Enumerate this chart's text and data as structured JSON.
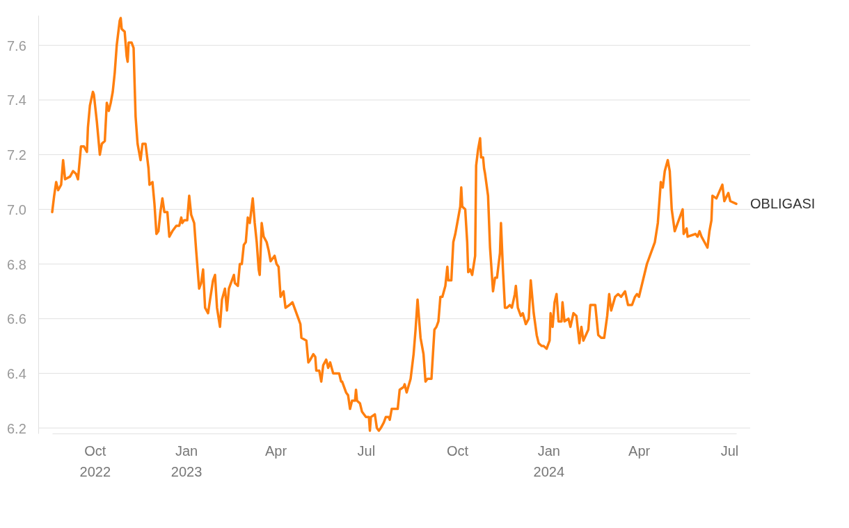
{
  "chart_data": {
    "type": "line",
    "xlim": [
      "2022-08-19",
      "2024-07-08"
    ],
    "ylim": [
      6.18,
      7.71
    ],
    "xticks": [
      {
        "value": "2022-10-01",
        "label": "Oct 2022"
      },
      {
        "value": "2023-01-01",
        "label": "Jan 2023"
      },
      {
        "value": "2023-04-01",
        "label": "Apr"
      },
      {
        "value": "2023-07-01",
        "label": "Jul"
      },
      {
        "value": "2023-10-01",
        "label": "Oct"
      },
      {
        "value": "2024-01-01",
        "label": "Jan 2024"
      },
      {
        "value": "2024-04-01",
        "label": "Apr"
      },
      {
        "value": "2024-07-01",
        "label": "Jul"
      }
    ],
    "yticks": [
      6.2,
      6.4,
      6.6,
      6.8,
      {
        "value": 7.0,
        "label": "7.0"
      },
      7.2,
      7.4,
      7.6
    ],
    "grid": "y",
    "legend": false,
    "x": [
      "2022-08-19",
      "2022-08-21",
      "2022-08-23",
      "2022-08-25",
      "2022-08-28",
      "2022-08-30",
      "2022-09-01",
      "2022-09-06",
      "2022-09-09",
      "2022-09-12",
      "2022-09-14",
      "2022-09-17",
      "2022-09-20",
      "2022-09-23",
      "2022-09-24",
      "2022-09-26",
      "2022-09-29",
      "2022-09-30",
      "2022-10-03",
      "2022-10-06",
      "2022-10-08",
      "2022-10-11",
      "2022-10-13",
      "2022-10-15",
      "2022-10-17",
      "2022-10-19",
      "2022-10-21",
      "2022-10-23",
      "2022-10-26",
      "2022-10-27",
      "2022-10-28",
      "2022-10-31",
      "2022-11-02",
      "2022-11-03",
      "2022-11-04",
      "2022-11-07",
      "2022-11-09",
      "2022-11-10",
      "2022-11-11",
      "2022-11-13",
      "2022-11-16",
      "2022-11-18",
      "2022-11-21",
      "2022-11-24",
      "2022-11-25",
      "2022-11-28",
      "2022-11-30",
      "2022-12-02",
      "2022-12-04",
      "2022-12-06",
      "2022-12-08",
      "2022-12-10",
      "2022-12-13",
      "2022-12-15",
      "2022-12-18",
      "2022-12-22",
      "2022-12-25",
      "2022-12-27",
      "2022-12-28",
      "2022-12-30",
      "2023-01-02",
      "2023-01-04",
      "2023-01-06",
      "2023-01-09",
      "2023-01-11",
      "2023-01-14",
      "2023-01-16",
      "2023-01-18",
      "2023-01-20",
      "2023-01-23",
      "2023-01-25",
      "2023-01-28",
      "2023-01-30",
      "2023-02-01",
      "2023-02-04",
      "2023-02-06",
      "2023-02-09",
      "2023-02-11",
      "2023-02-13",
      "2023-02-16",
      "2023-02-18",
      "2023-02-19",
      "2023-02-22",
      "2023-02-24",
      "2023-02-26",
      "2023-02-28",
      "2023-03-02",
      "2023-03-04",
      "2023-03-06",
      "2023-03-09",
      "2023-03-11",
      "2023-03-13",
      "2023-03-15",
      "2023-03-16",
      "2023-03-18",
      "2023-03-20",
      "2023-03-23",
      "2023-03-25",
      "2023-03-27",
      "2023-03-31",
      "2023-04-02",
      "2023-04-04",
      "2023-04-06",
      "2023-04-09",
      "2023-04-11",
      "2023-04-15",
      "2023-04-18",
      "2023-04-21",
      "2023-04-24",
      "2023-04-26",
      "2023-04-27",
      "2023-05-02",
      "2023-05-04",
      "2023-05-06",
      "2023-05-09",
      "2023-05-11",
      "2023-05-12",
      "2023-05-15",
      "2023-05-17",
      "2023-05-19",
      "2023-05-22",
      "2023-05-24",
      "2023-05-26",
      "2023-05-29",
      "2023-06-04",
      "2023-06-06",
      "2023-06-07",
      "2023-06-11",
      "2023-06-13",
      "2023-06-15",
      "2023-06-17",
      "2023-06-20",
      "2023-06-21",
      "2023-06-22",
      "2023-06-25",
      "2023-06-27",
      "2023-07-01",
      "2023-07-04",
      "2023-07-05",
      "2023-07-06",
      "2023-07-10",
      "2023-07-12",
      "2023-07-14",
      "2023-07-16",
      "2023-07-19",
      "2023-07-21",
      "2023-07-24",
      "2023-07-25",
      "2023-07-27",
      "2023-07-31",
      "2023-08-02",
      "2023-08-04",
      "2023-08-08",
      "2023-08-09",
      "2023-08-11",
      "2023-08-15",
      "2023-08-18",
      "2023-08-20",
      "2023-08-22",
      "2023-08-25",
      "2023-08-28",
      "2023-08-30",
      "2023-09-01",
      "2023-09-05",
      "2023-09-08",
      "2023-09-10",
      "2023-09-12",
      "2023-09-14",
      "2023-09-16",
      "2023-09-19",
      "2023-09-21",
      "2023-09-22",
      "2023-09-25",
      "2023-09-27",
      "2023-09-29",
      "2023-10-02",
      "2023-10-04",
      "2023-10-05",
      "2023-10-06",
      "2023-10-09",
      "2023-10-11",
      "2023-10-12",
      "2023-10-14",
      "2023-10-16",
      "2023-10-19",
      "2023-10-20",
      "2023-10-22",
      "2023-10-24",
      "2023-10-25",
      "2023-10-27",
      "2023-10-28",
      "2023-10-29",
      "2023-11-01",
      "2023-11-03",
      "2023-11-06",
      "2023-11-08",
      "2023-11-10",
      "2023-11-13",
      "2023-11-14",
      "2023-11-16",
      "2023-11-18",
      "2023-11-20",
      "2023-11-23",
      "2023-11-25",
      "2023-11-28",
      "2023-11-29",
      "2023-12-01",
      "2023-12-04",
      "2023-12-06",
      "2023-12-09",
      "2023-12-12",
      "2023-12-14",
      "2023-12-17",
      "2023-12-20",
      "2023-12-22",
      "2023-12-25",
      "2023-12-27",
      "2023-12-30",
      "2024-01-02",
      "2024-01-03",
      "2024-01-05",
      "2024-01-07",
      "2024-01-09",
      "2024-01-11",
      "2024-01-14",
      "2024-01-15",
      "2024-01-17",
      "2024-01-21",
      "2024-01-23",
      "2024-01-26",
      "2024-01-29",
      "2024-02-01",
      "2024-02-03",
      "2024-02-05",
      "2024-02-10",
      "2024-02-12",
      "2024-02-15",
      "2024-02-17",
      "2024-02-20",
      "2024-02-23",
      "2024-02-26",
      "2024-02-29",
      "2024-03-02",
      "2024-03-04",
      "2024-03-08",
      "2024-03-11",
      "2024-03-14",
      "2024-03-18",
      "2024-03-21",
      "2024-03-25",
      "2024-03-28",
      "2024-03-30",
      "2024-04-01",
      "2024-04-09",
      "2024-04-17",
      "2024-04-20",
      "2024-04-23",
      "2024-04-25",
      "2024-04-27",
      "2024-04-30",
      "2024-05-02",
      "2024-05-04",
      "2024-05-07",
      "2024-05-15",
      "2024-05-16",
      "2024-05-19",
      "2024-05-20",
      "2024-05-28",
      "2024-05-30",
      "2024-06-01",
      "2024-06-03",
      "2024-06-06",
      "2024-06-09",
      "2024-06-11",
      "2024-06-13",
      "2024-06-14",
      "2024-06-18",
      "2024-06-24",
      "2024-06-26",
      "2024-06-30",
      "2024-07-02",
      "2024-07-08"
    ],
    "series": [
      {
        "name": "OBLIGASI",
        "color": "#ff7f0e",
        "values": [
          6.99,
          7.05,
          7.1,
          7.07,
          7.09,
          7.18,
          7.11,
          7.12,
          7.14,
          7.13,
          7.11,
          7.23,
          7.23,
          7.21,
          7.3,
          7.38,
          7.43,
          7.42,
          7.32,
          7.2,
          7.24,
          7.25,
          7.39,
          7.36,
          7.39,
          7.43,
          7.5,
          7.6,
          7.69,
          7.7,
          7.66,
          7.65,
          7.56,
          7.54,
          7.61,
          7.61,
          7.59,
          7.46,
          7.34,
          7.24,
          7.18,
          7.24,
          7.24,
          7.15,
          7.09,
          7.1,
          7.02,
          6.91,
          6.92,
          6.99,
          7.04,
          6.99,
          6.99,
          6.9,
          6.92,
          6.94,
          6.94,
          6.97,
          6.95,
          6.96,
          6.96,
          7.05,
          6.98,
          6.95,
          6.85,
          6.71,
          6.73,
          6.78,
          6.64,
          6.62,
          6.67,
          6.74,
          6.76,
          6.64,
          6.57,
          6.67,
          6.71,
          6.63,
          6.71,
          6.74,
          6.76,
          6.73,
          6.72,
          6.8,
          6.8,
          6.87,
          6.88,
          6.97,
          6.95,
          7.04,
          6.95,
          6.88,
          6.78,
          6.76,
          6.95,
          6.9,
          6.88,
          6.85,
          6.81,
          6.83,
          6.8,
          6.79,
          6.68,
          6.7,
          6.64,
          6.65,
          6.66,
          6.63,
          6.6,
          6.58,
          6.53,
          6.52,
          6.44,
          6.45,
          6.47,
          6.46,
          6.41,
          6.41,
          6.37,
          6.43,
          6.45,
          6.42,
          6.44,
          6.4,
          6.4,
          6.37,
          6.37,
          6.33,
          6.32,
          6.27,
          6.3,
          6.3,
          6.34,
          6.3,
          6.29,
          6.26,
          6.24,
          6.24,
          6.19,
          6.24,
          6.25,
          6.2,
          6.19,
          6.2,
          6.22,
          6.24,
          6.24,
          6.23,
          6.27,
          6.27,
          6.27,
          6.34,
          6.35,
          6.36,
          6.33,
          6.38,
          6.47,
          6.56,
          6.67,
          6.53,
          6.47,
          6.37,
          6.38,
          6.38,
          6.56,
          6.57,
          6.59,
          6.68,
          6.68,
          6.72,
          6.79,
          6.74,
          6.74,
          6.88,
          6.91,
          6.97,
          7.01,
          7.08,
          7.01,
          7.0,
          6.88,
          6.77,
          6.78,
          6.76,
          6.83,
          7.16,
          7.22,
          7.26,
          7.19,
          7.19,
          7.15,
          7.13,
          7.05,
          6.86,
          6.7,
          6.75,
          6.75,
          6.84,
          6.95,
          6.78,
          6.64,
          6.64,
          6.65,
          6.64,
          6.69,
          6.72,
          6.64,
          6.61,
          6.62,
          6.58,
          6.6,
          6.74,
          6.62,
          6.54,
          6.51,
          6.5,
          6.5,
          6.49,
          6.52,
          6.62,
          6.57,
          6.66,
          6.69,
          6.59,
          6.59,
          6.66,
          6.59,
          6.6,
          6.57,
          6.62,
          6.61,
          6.51,
          6.57,
          6.52,
          6.56,
          6.65,
          6.65,
          6.65,
          6.54,
          6.53,
          6.53,
          6.61,
          6.69,
          6.63,
          6.68,
          6.69,
          6.68,
          6.7,
          6.65,
          6.65,
          6.68,
          6.69,
          6.68,
          6.8,
          6.88,
          6.95,
          7.1,
          7.08,
          7.14,
          7.18,
          7.14,
          7.0,
          6.92,
          7.0,
          6.91,
          6.93,
          6.9,
          6.91,
          6.9,
          6.92,
          6.9,
          6.88,
          6.86,
          6.92,
          6.96,
          7.05,
          7.04,
          7.09,
          7.03,
          7.06,
          7.03,
          7.02
        ]
      }
    ]
  }
}
